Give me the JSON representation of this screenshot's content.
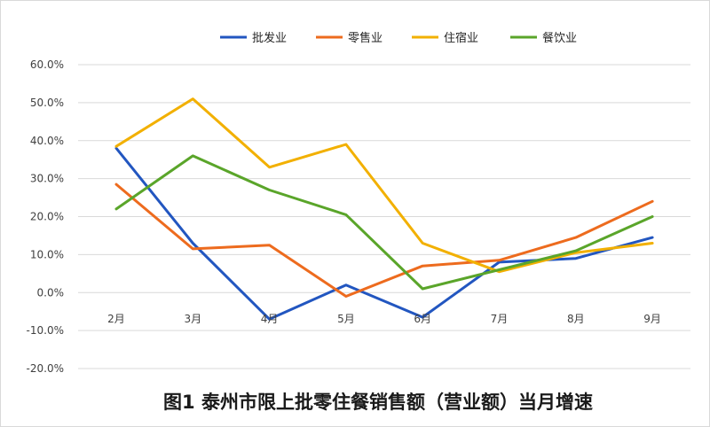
{
  "chart_data": {
    "type": "line",
    "title": "图1  泰州市限上批零住餐销售额（营业额）当月增速",
    "categories": [
      "2月",
      "3月",
      "4月",
      "5月",
      "6月",
      "7月",
      "8月",
      "9月"
    ],
    "ylim": [
      -20,
      60
    ],
    "yticks": [
      60,
      50,
      40,
      30,
      20,
      10,
      0,
      -10,
      -20
    ],
    "ytick_labels": [
      "60.0%",
      "50.0%",
      "40.0%",
      "30.0%",
      "20.0%",
      "10.0%",
      "0.0%",
      "-10.0%",
      "-20.0%"
    ],
    "grid": true,
    "legend_position": "top-right",
    "series": [
      {
        "name": "批发业",
        "color": "#2256c0",
        "values": [
          38.0,
          13.0,
          -7.0,
          2.0,
          -6.5,
          8.0,
          9.0,
          14.5
        ]
      },
      {
        "name": "零售业",
        "color": "#ed6b1e",
        "values": [
          28.5,
          11.5,
          12.5,
          -1.0,
          7.0,
          8.5,
          14.5,
          24.0
        ]
      },
      {
        "name": "住宿业",
        "color": "#f2b000",
        "values": [
          38.5,
          51.0,
          33.0,
          39.0,
          13.0,
          5.5,
          10.5,
          13.0
        ]
      },
      {
        "name": "餐饮业",
        "color": "#5aa52a",
        "values": [
          22.0,
          36.0,
          27.0,
          20.5,
          1.0,
          6.0,
          11.0,
          20.0
        ]
      }
    ]
  }
}
